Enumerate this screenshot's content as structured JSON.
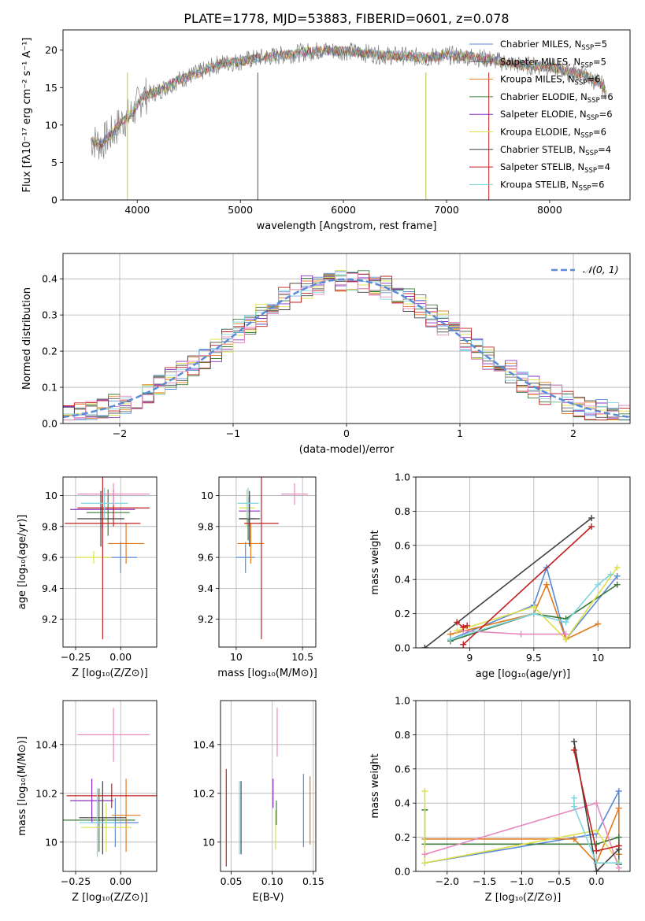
{
  "figure": {
    "title": "PLATE=1778, MJD=53883, FIBERID=0601, z=0.078"
  },
  "colors": {
    "axis": "#000000",
    "grid": "#b0b0b0",
    "gaussian": "#5b8ad6"
  },
  "chart_data": [
    {
      "id": "spectrum",
      "type": "line",
      "xlabel": "wavelength [Angstrom, rest frame]",
      "ylabel": "Flux [fλ10⁻¹⁷ erg cm⁻² s⁻¹ A⁻¹]",
      "xlim": [
        3280,
        8780
      ],
      "ylim": [
        0,
        22.7
      ],
      "xticks": [
        4000,
        5000,
        6000,
        7000,
        8000
      ],
      "yticks": [
        0,
        5,
        10,
        15,
        20
      ],
      "grid": false,
      "legend_placement": "upper-right",
      "observed_color": "#808080",
      "observed_anchors": [
        [
          3550,
          8.0
        ],
        [
          3650,
          7.5
        ],
        [
          3750,
          8.8
        ],
        [
          3850,
          10.5
        ],
        [
          3950,
          11.5
        ],
        [
          4050,
          13.8
        ],
        [
          4200,
          14.5
        ],
        [
          4400,
          16.0
        ],
        [
          4600,
          17.0
        ],
        [
          4800,
          18.2
        ],
        [
          5000,
          18.5
        ],
        [
          5200,
          19.0
        ],
        [
          5500,
          19.5
        ],
        [
          5800,
          20.0
        ],
        [
          6100,
          19.8
        ],
        [
          6400,
          19.3
        ],
        [
          6600,
          19.2
        ],
        [
          6800,
          19.0
        ],
        [
          7000,
          19.3
        ],
        [
          7200,
          19.2
        ],
        [
          7400,
          18.8
        ],
        [
          7700,
          18.0
        ],
        [
          8000,
          17.8
        ],
        [
          8300,
          16.8
        ],
        [
          8500,
          15.5
        ],
        [
          8550,
          14.5
        ]
      ],
      "spikes": [
        {
          "x": 3905,
          "color": "#c9c82a"
        },
        {
          "x": 5170,
          "color": "#555555"
        },
        {
          "x": 6800,
          "color": "#b8c24a"
        },
        {
          "x": 7410,
          "color": "#c11f1f"
        }
      ],
      "series": [
        {
          "name": "Chabrier MILES",
          "nssp": "5",
          "color": "#5b8ad6"
        },
        {
          "name": "Salpeter MILES",
          "nssp": "5",
          "color": "#6a6a6a"
        },
        {
          "name": "Kroupa MILES",
          "nssp": "6",
          "color": "#e07b1f"
        },
        {
          "name": "Chabrier ELODIE",
          "nssp": "6",
          "color": "#3c7a3c"
        },
        {
          "name": "Salpeter ELODIE",
          "nssp": "6",
          "color": "#8b2fbd"
        },
        {
          "name": "Kroupa ELODIE",
          "nssp": "6",
          "color": "#dde04a"
        },
        {
          "name": "Chabrier STELIB",
          "nssp": "4",
          "color": "#404040"
        },
        {
          "name": "Salpeter STELIB",
          "nssp": "4",
          "color": "#c11f1f"
        },
        {
          "name": "Kroupa STELIB",
          "nssp": "6",
          "color": "#7fd6e0"
        }
      ]
    },
    {
      "id": "residuals",
      "type": "line",
      "xlabel": "(data-model)/error",
      "ylabel": "Normed distribution",
      "xlim": [
        -2.5,
        2.5
      ],
      "ylim": [
        0,
        0.47
      ],
      "xticks": [
        -2,
        -1,
        0,
        1,
        2
      ],
      "yticks": [
        0.0,
        0.1,
        0.2,
        0.3,
        0.4
      ],
      "grid": true,
      "legend_placement": "upper-right",
      "gaussian_label": "𝒩(0, 1)",
      "bin_width": 0.1,
      "series_colors": [
        "#5b8ad6",
        "#6a6a6a",
        "#e07b1f",
        "#3c7a3c",
        "#8b2fbd",
        "#dde04a",
        "#404040",
        "#c11f1f",
        "#7fd6e0",
        "#e88ac0"
      ]
    },
    {
      "id": "age-vs-z",
      "type": "scatter",
      "xlabel": "Z [log₁₀(Z/Z⊙)]",
      "ylabel": "age  [log₁₀(age/yr)]",
      "xlim": [
        -0.32,
        0.2
      ],
      "ylim": [
        9.02,
        10.12
      ],
      "xticks": [
        -0.25,
        0.0
      ],
      "xticklabels": [
        "−0.25",
        "0.00"
      ],
      "yticks": [
        9.2,
        9.4,
        9.6,
        9.8,
        10.0
      ],
      "grid": true,
      "points": [
        {
          "x": 0.0,
          "xerr": 0.09,
          "y": 9.6,
          "yerr": 0.1,
          "color": "#5b8ad6"
        },
        {
          "x": 0.03,
          "xerr": 0.1,
          "y": 9.69,
          "yerr": 0.13,
          "color": "#e07b1f"
        },
        {
          "x": -0.15,
          "xerr": 0.1,
          "y": 9.6,
          "yerr": 0.04,
          "color": "#dde04a"
        },
        {
          "x": -0.07,
          "xerr": 0.12,
          "y": 9.89,
          "yerr": 0.15,
          "color": "#3c7a3c"
        },
        {
          "x": -0.1,
          "xerr": 0.18,
          "y": 9.91,
          "yerr": 0.12,
          "color": "#8b2fbd"
        },
        {
          "x": -0.04,
          "xerr": 0.2,
          "y": 9.92,
          "yerr": 0.12,
          "color": "#c11f1f"
        },
        {
          "x": -0.11,
          "xerr": 0.13,
          "y": 9.85,
          "yerr": 0.18,
          "color": "#404040"
        },
        {
          "x": -0.1,
          "xerr": 0.21,
          "y": 9.82,
          "yerr": 0.75,
          "color": "#c11f1f"
        },
        {
          "x": -0.09,
          "xerr": 0.13,
          "y": 9.95,
          "yerr": 0.1,
          "color": "#7fd6e0"
        },
        {
          "x": -0.04,
          "xerr": 0.2,
          "y": 10.01,
          "yerr": 0.07,
          "color": "#e88ac0"
        }
      ]
    },
    {
      "id": "age-vs-mass",
      "type": "scatter",
      "xlabel": "mass [log₁₀(M/M⊙)]",
      "ylabel": "",
      "xlim": [
        9.87,
        10.6
      ],
      "ylim": [
        9.02,
        10.12
      ],
      "xticks": [
        10.0,
        10.5
      ],
      "yticks": [
        9.2,
        9.4,
        9.6,
        9.8,
        10.0
      ],
      "grid": true,
      "points": [
        {
          "x": 10.07,
          "xerr": 0.07,
          "y": 9.6,
          "yerr": 0.1,
          "color": "#5b8ad6"
        },
        {
          "x": 10.11,
          "xerr": 0.1,
          "y": 9.69,
          "yerr": 0.13,
          "color": "#e07b1f"
        },
        {
          "x": 10.09,
          "xerr": 0.06,
          "y": 9.85,
          "yerr": 0.14,
          "color": "#3c7a3c"
        },
        {
          "x": 10.1,
          "xerr": 0.08,
          "y": 9.9,
          "yerr": 0.1,
          "color": "#8b2fbd"
        },
        {
          "x": 10.08,
          "xerr": 0.06,
          "y": 9.92,
          "yerr": 0.12,
          "color": "#dde04a"
        },
        {
          "x": 10.1,
          "xerr": 0.08,
          "y": 9.85,
          "yerr": 0.18,
          "color": "#404040"
        },
        {
          "x": 10.19,
          "xerr": 0.13,
          "y": 9.82,
          "yerr": 0.75,
          "color": "#c11f1f"
        },
        {
          "x": 10.09,
          "xerr": 0.08,
          "y": 9.95,
          "yerr": 0.1,
          "color": "#7fd6e0"
        },
        {
          "x": 10.44,
          "xerr": 0.1,
          "y": 10.01,
          "yerr": 0.07,
          "color": "#e88ac0"
        }
      ]
    },
    {
      "id": "mass-weight-vs-age",
      "type": "line",
      "xlabel": "age  [log₁₀(age/yr)]",
      "ylabel": "mass weight",
      "xlim": [
        8.58,
        10.25
      ],
      "ylim": [
        0,
        1.0
      ],
      "xticks": [
        9.0,
        9.5,
        10.0
      ],
      "yticks": [
        0.0,
        0.2,
        0.4,
        0.6,
        0.8,
        1.0
      ],
      "grid": true,
      "series": [
        {
          "color": "#5b8ad6",
          "points": [
            [
              8.85,
              0.05
            ],
            [
              9.5,
              0.25
            ],
            [
              9.6,
              0.47
            ],
            [
              9.75,
              0.05
            ],
            [
              10.15,
              0.42
            ]
          ]
        },
        {
          "color": "#e07b1f",
          "points": [
            [
              8.85,
              0.08
            ],
            [
              9.5,
              0.2
            ],
            [
              9.6,
              0.37
            ],
            [
              9.75,
              0.05
            ],
            [
              10.0,
              0.14
            ]
          ]
        },
        {
          "color": "#3c7a3c",
          "points": [
            [
              8.85,
              0.04
            ],
            [
              9.5,
              0.2
            ],
            [
              9.75,
              0.17
            ],
            [
              10.15,
              0.37
            ]
          ]
        },
        {
          "color": "#dde04a",
          "points": [
            [
              8.9,
              0.1
            ],
            [
              9.5,
              0.24
            ],
            [
              9.75,
              0.05
            ],
            [
              10.15,
              0.47
            ]
          ]
        },
        {
          "color": "#e88ac0",
          "points": [
            [
              8.95,
              0.1
            ],
            [
              9.4,
              0.08
            ],
            [
              9.75,
              0.08
            ]
          ]
        },
        {
          "color": "#404040",
          "points": [
            [
              8.65,
              0.0
            ],
            [
              9.95,
              0.76
            ]
          ]
        },
        {
          "color": "#c11f1f",
          "points": [
            [
              8.95,
              0.02
            ],
            [
              9.95,
              0.71
            ]
          ]
        },
        {
          "color": "#c11f1f",
          "points": [
            [
              8.9,
              0.15
            ],
            [
              8.95,
              0.12
            ],
            [
              8.98,
              0.13
            ]
          ]
        },
        {
          "color": "#7fd6e0",
          "points": [
            [
              8.85,
              0.05
            ],
            [
              9.5,
              0.2
            ],
            [
              9.75,
              0.15
            ],
            [
              10.0,
              0.37
            ],
            [
              10.1,
              0.43
            ]
          ]
        }
      ]
    },
    {
      "id": "mass-vs-z",
      "type": "scatter",
      "xlabel": "Z [log₁₀(Z/Z⊙)]",
      "ylabel": "mass [log₁₀(M/M⊙)]",
      "xlim": [
        -0.32,
        0.2
      ],
      "ylim": [
        9.88,
        10.58
      ],
      "xticks": [
        -0.25,
        0.0
      ],
      "xticklabels": [
        "−0.25",
        "0.00"
      ],
      "yticks": [
        10.0,
        10.2,
        10.4
      ],
      "grid": true,
      "points": [
        {
          "x": -0.03,
          "xerr": 0.13,
          "y": 10.08,
          "yerr": 0.1,
          "color": "#5b8ad6"
        },
        {
          "x": 0.03,
          "xerr": 0.08,
          "y": 10.11,
          "yerr": 0.15,
          "color": "#e07b1f"
        },
        {
          "x": -0.12,
          "xerr": 0.2,
          "y": 10.09,
          "yerr": 0.13,
          "color": "#3c7a3c"
        },
        {
          "x": -0.16,
          "xerr": 0.12,
          "y": 10.17,
          "yerr": 0.09,
          "color": "#8b2fbd"
        },
        {
          "x": -0.08,
          "xerr": 0.14,
          "y": 10.06,
          "yerr": 0.1,
          "color": "#dde04a"
        },
        {
          "x": -0.1,
          "xerr": 0.13,
          "y": 10.1,
          "yerr": 0.15,
          "color": "#404040"
        },
        {
          "x": -0.05,
          "xerr": 0.25,
          "y": 10.19,
          "yerr": 0.05,
          "color": "#c11f1f"
        },
        {
          "x": -0.13,
          "xerr": 0.1,
          "y": 10.08,
          "yerr": 0.14,
          "color": "#7fd6e0"
        },
        {
          "x": -0.04,
          "xerr": 0.2,
          "y": 10.44,
          "yerr": 0.11,
          "color": "#e88ac0"
        }
      ]
    },
    {
      "id": "mass-vs-ebv",
      "type": "scatter",
      "xlabel": "E(B-V)",
      "ylabel": "",
      "xlim": [
        0.037,
        0.153
      ],
      "ylim": [
        9.88,
        10.58
      ],
      "xticks": [
        0.05,
        0.1,
        0.15
      ],
      "xticklabels": [
        "0.05",
        "0.10",
        "0.15"
      ],
      "yticks": [
        10.0,
        10.2,
        10.4
      ],
      "grid": true,
      "points": [
        {
          "x": 0.044,
          "y": 10.1,
          "yerr": 0.2,
          "color": "#c11f1f"
        },
        {
          "x": 0.06,
          "y": 10.1,
          "yerr": 0.15,
          "color": "#7fd6e0"
        },
        {
          "x": 0.062,
          "y": 10.1,
          "yerr": 0.15,
          "color": "#404040"
        },
        {
          "x": 0.101,
          "y": 10.2,
          "yerr": 0.06,
          "color": "#8b2fbd"
        },
        {
          "x": 0.104,
          "y": 10.05,
          "yerr": 0.08,
          "color": "#dde04a"
        },
        {
          "x": 0.105,
          "y": 10.12,
          "yerr": 0.05,
          "color": "#3c7a3c"
        },
        {
          "x": 0.106,
          "y": 10.45,
          "yerr": 0.1,
          "color": "#e88ac0"
        },
        {
          "x": 0.138,
          "y": 10.13,
          "yerr": 0.15,
          "color": "#5b8ad6"
        },
        {
          "x": 0.146,
          "y": 10.13,
          "yerr": 0.14,
          "color": "#e07b1f"
        }
      ]
    },
    {
      "id": "mass-weight-vs-z",
      "type": "line",
      "xlabel": "Z [log₁₀(Z/Z⊙)]",
      "ylabel": "mass weight",
      "xlim": [
        -2.42,
        0.45
      ],
      "ylim": [
        0,
        1.0
      ],
      "xticks": [
        -2.0,
        -1.5,
        -1.0,
        -0.5,
        0.0
      ],
      "xticklabels": [
        "−2.0",
        "−1.5",
        "−1.0",
        "−0.5",
        "0.0"
      ],
      "yticks": [
        0.0,
        0.2,
        0.4,
        0.6,
        0.8,
        1.0
      ],
      "grid": true,
      "series": [
        {
          "color": "#5b8ad6",
          "points": [
            [
              -2.3,
              0.05
            ],
            [
              0.0,
              0.22
            ],
            [
              0.3,
              0.47
            ],
            [
              0.3,
              0.05
            ]
          ]
        },
        {
          "color": "#e07b1f",
          "points": [
            [
              -2.3,
              0.19
            ],
            [
              -0.3,
              0.19
            ],
            [
              0.0,
              0.05
            ],
            [
              0.3,
              0.37
            ],
            [
              0.3,
              0.1
            ]
          ]
        },
        {
          "color": "#3c7a3c",
          "points": [
            [
              -2.3,
              0.36
            ],
            [
              -2.3,
              0.16
            ],
            [
              0.0,
              0.16
            ],
            [
              0.3,
              0.2
            ],
            [
              0.3,
              0.04
            ]
          ]
        },
        {
          "color": "#dde04a",
          "points": [
            [
              -2.3,
              0.47
            ],
            [
              -2.3,
              0.05
            ],
            [
              0.0,
              0.24
            ],
            [
              0.3,
              0.05
            ]
          ]
        },
        {
          "color": "#e88ac0",
          "points": [
            [
              -2.3,
              0.1
            ],
            [
              0.0,
              0.4
            ],
            [
              0.3,
              0.02
            ]
          ]
        },
        {
          "color": "#404040",
          "points": [
            [
              -0.3,
              0.76
            ],
            [
              0.0,
              0.0
            ],
            [
              0.3,
              0.13
            ]
          ]
        },
        {
          "color": "#c11f1f",
          "points": [
            [
              -0.3,
              0.71
            ],
            [
              0.0,
              0.12
            ],
            [
              0.3,
              0.15
            ]
          ]
        },
        {
          "color": "#7fd6e0",
          "points": [
            [
              -0.3,
              0.43
            ],
            [
              -0.3,
              0.38
            ],
            [
              0.0,
              0.05
            ],
            [
              0.3,
              0.05
            ]
          ]
        }
      ]
    }
  ]
}
